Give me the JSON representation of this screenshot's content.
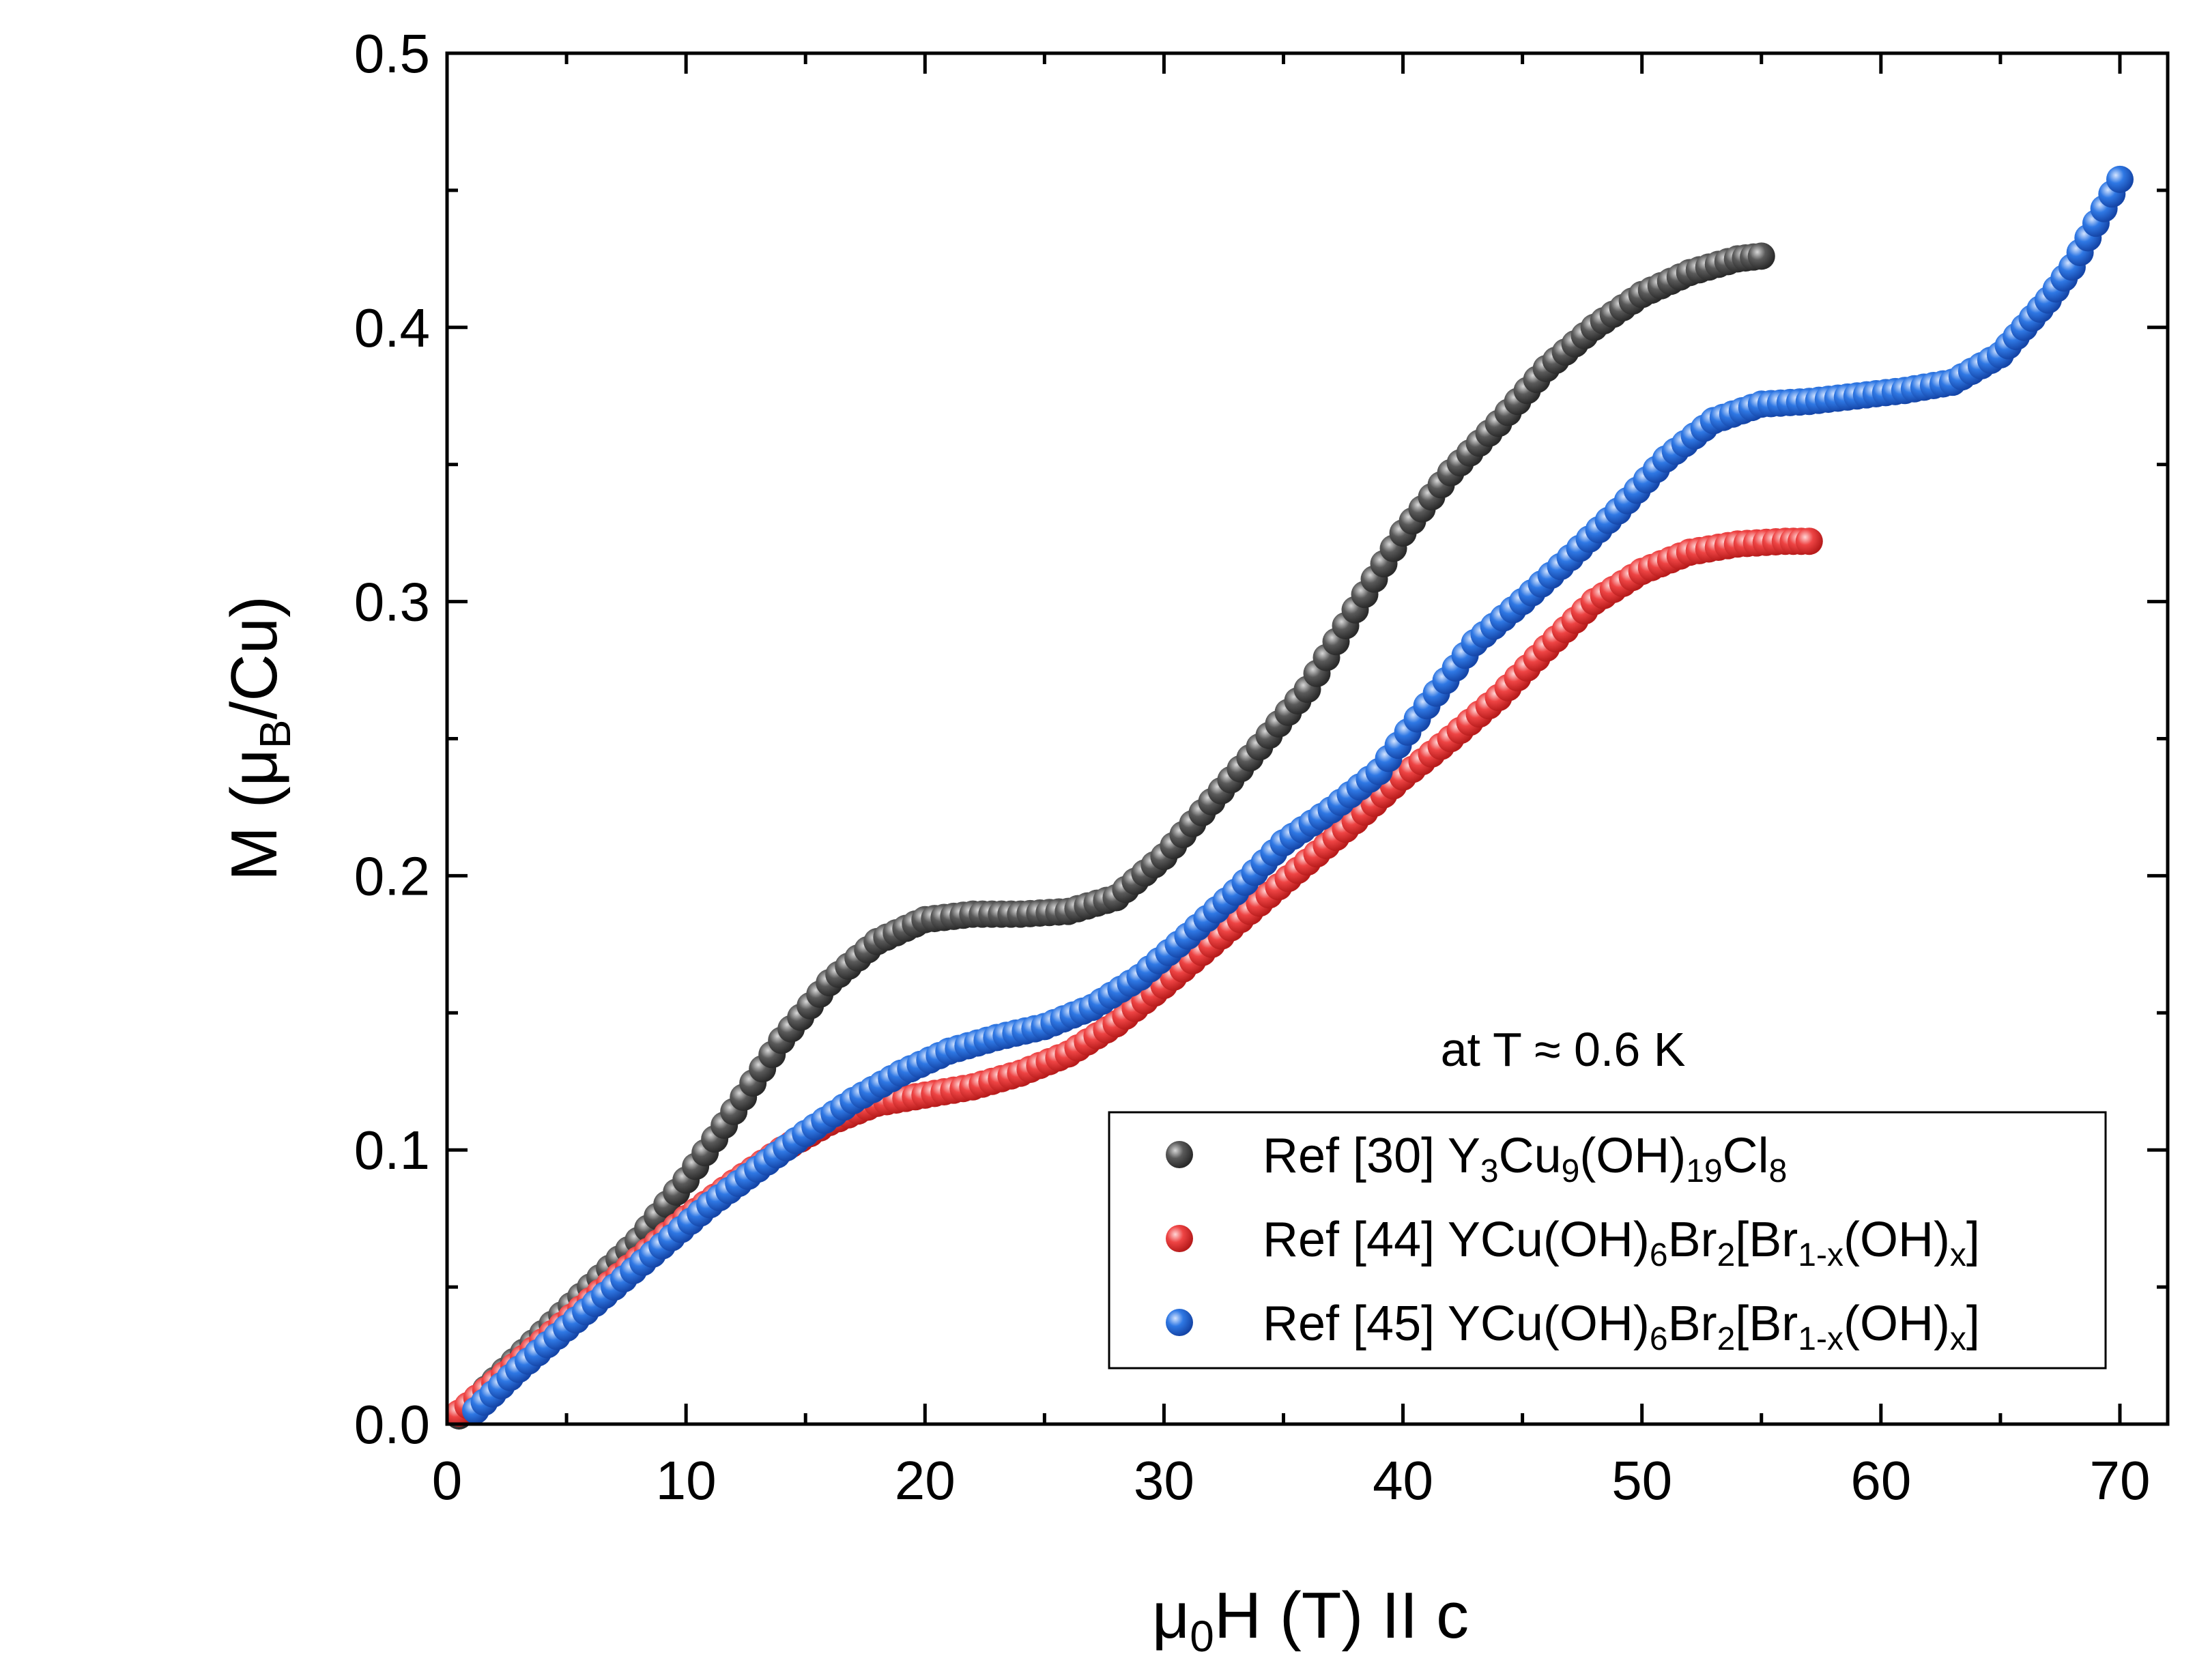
{
  "chart_data": {
    "type": "scatter",
    "title": "",
    "xlabel": {
      "main": "μ",
      "sub": "0",
      "rest": "H (T) II c"
    },
    "ylabel": {
      "pre": "M (μ",
      "sub": "B",
      "post": "/Cu)"
    },
    "xlim": [
      0,
      72
    ],
    "ylim": [
      0,
      0.5
    ],
    "x_ticks": [
      0,
      10,
      20,
      30,
      40,
      50,
      60,
      70
    ],
    "x_tick_labels": [
      "0",
      "10",
      "20",
      "30",
      "40",
      "50",
      "60",
      "70"
    ],
    "y_ticks": [
      0.0,
      0.1,
      0.2,
      0.3,
      0.4,
      0.5
    ],
    "y_tick_labels": [
      "0.0",
      "0.1",
      "0.2",
      "0.3",
      "0.4",
      "0.5"
    ],
    "grid": false,
    "annotation": "at T ≈ 0.6 K",
    "legend_position": "bottom-right",
    "series": [
      {
        "name": "Ref [30] Y3Cu9(OH)19Cl8",
        "legend_parts": [
          [
            "Ref [30] Y",
            ""
          ],
          [
            "3",
            "sub"
          ],
          [
            "Cu",
            ""
          ],
          [
            "9",
            "sub"
          ],
          [
            "(OH)",
            ""
          ],
          [
            "19",
            "sub"
          ],
          [
            "Cl",
            ""
          ],
          [
            "8",
            "sub"
          ]
        ],
        "color": "#4a4a4a",
        "x": [
          0.5,
          2,
          4,
          6,
          8,
          10,
          12,
          14,
          16,
          18,
          20,
          22,
          24,
          26,
          28,
          30,
          32,
          34,
          36,
          38,
          40,
          42,
          44,
          46,
          48,
          50,
          52,
          54,
          55
        ],
        "y": [
          0.003,
          0.016,
          0.033,
          0.05,
          0.067,
          0.089,
          0.114,
          0.14,
          0.161,
          0.176,
          0.184,
          0.186,
          0.186,
          0.187,
          0.192,
          0.207,
          0.227,
          0.247,
          0.268,
          0.297,
          0.325,
          0.347,
          0.365,
          0.385,
          0.4,
          0.412,
          0.42,
          0.425,
          0.426
        ]
      },
      {
        "name": "Ref [44] YCu(OH)6Br2[Br1-x(OH)x]",
        "legend_parts": [
          [
            "Ref [44] YCu(OH)",
            ""
          ],
          [
            "6",
            "sub"
          ],
          [
            "Br",
            ""
          ],
          [
            "2",
            "sub"
          ],
          [
            "[Br",
            ""
          ],
          [
            "1-x",
            "sub"
          ],
          [
            "(OH)",
            ""
          ],
          [
            "x",
            "sub"
          ],
          [
            "]",
            ""
          ]
        ],
        "color": "#ee3f3f",
        "x": [
          0.5,
          2,
          4,
          6,
          8,
          10,
          12,
          14,
          16,
          18,
          20,
          22,
          24,
          26,
          28,
          30,
          32,
          34,
          36,
          38,
          40,
          42,
          44,
          46,
          48,
          50,
          52,
          54,
          56,
          57
        ],
        "y": [
          0.004,
          0.015,
          0.03,
          0.045,
          0.06,
          0.075,
          0.088,
          0.1,
          0.11,
          0.117,
          0.12,
          0.123,
          0.128,
          0.135,
          0.146,
          0.16,
          0.175,
          0.19,
          0.205,
          0.22,
          0.236,
          0.25,
          0.265,
          0.283,
          0.3,
          0.311,
          0.318,
          0.321,
          0.322,
          0.322
        ]
      },
      {
        "name": "Ref [45] YCu(OH)6Br2[Br1-x(OH)x]",
        "legend_parts": [
          [
            "Ref [45] YCu(OH)",
            ""
          ],
          [
            "6",
            "sub"
          ],
          [
            "Br",
            ""
          ],
          [
            "2",
            "sub"
          ],
          [
            "[Br",
            ""
          ],
          [
            "1-x",
            "sub"
          ],
          [
            "(OH)",
            ""
          ],
          [
            "x",
            "sub"
          ],
          [
            "]",
            ""
          ]
        ],
        "color": "#2a6fd8",
        "x": [
          1.2,
          3,
          5,
          7,
          9,
          11,
          13,
          15,
          17,
          19,
          21,
          23,
          25,
          27,
          29,
          31,
          33,
          35,
          37,
          39,
          41,
          43,
          45,
          47,
          49,
          51,
          53,
          55,
          57,
          59,
          61,
          63,
          65,
          66,
          67,
          68,
          69,
          70
        ],
        "y": [
          0.005,
          0.02,
          0.035,
          0.05,
          0.065,
          0.08,
          0.093,
          0.106,
          0.118,
          0.128,
          0.136,
          0.141,
          0.145,
          0.152,
          0.163,
          0.178,
          0.194,
          0.212,
          0.224,
          0.238,
          0.262,
          0.285,
          0.3,
          0.316,
          0.333,
          0.352,
          0.366,
          0.372,
          0.373,
          0.375,
          0.377,
          0.38,
          0.39,
          0.4,
          0.41,
          0.422,
          0.438,
          0.454
        ]
      }
    ]
  }
}
